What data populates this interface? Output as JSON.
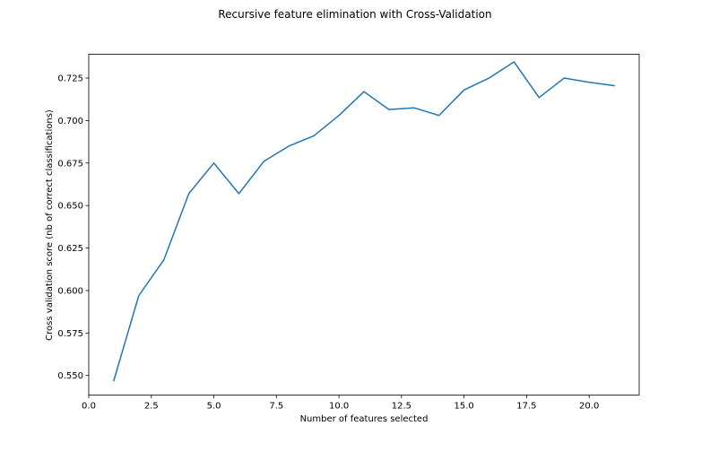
{
  "chart_data": {
    "type": "line",
    "title": "Recursive feature elimination with Cross-Validation",
    "xlabel": "Number of features selected",
    "ylabel": "Cross validation score (nb of correct classifications)",
    "xlim": [
      0.0,
      22.0
    ],
    "ylim": [
      0.5385,
      0.739
    ],
    "xticks": [
      0.0,
      2.5,
      5.0,
      7.5,
      10.0,
      12.5,
      15.0,
      17.5,
      20.0
    ],
    "xtick_labels": [
      "0.0",
      "2.5",
      "5.0",
      "7.5",
      "10.0",
      "12.5",
      "15.0",
      "17.5",
      "20.0"
    ],
    "yticks": [
      0.55,
      0.575,
      0.6,
      0.625,
      0.65,
      0.675,
      0.7,
      0.725
    ],
    "ytick_labels": [
      "0.550",
      "0.575",
      "0.600",
      "0.625",
      "0.650",
      "0.675",
      "0.700",
      "0.725"
    ],
    "grid": false,
    "series": [
      {
        "color": "#1f77b4",
        "x": [
          1,
          2,
          3,
          4,
          5,
          6,
          7,
          8,
          9,
          10,
          11,
          12,
          13,
          14,
          15,
          16,
          17,
          18,
          19,
          20,
          21
        ],
        "y": [
          0.547,
          0.597,
          0.618,
          0.657,
          0.675,
          0.657,
          0.676,
          0.685,
          0.691,
          0.703,
          0.717,
          0.7065,
          0.7075,
          0.703,
          0.718,
          0.725,
          0.7345,
          0.7135,
          0.725,
          0.7225,
          0.7205
        ]
      }
    ]
  }
}
